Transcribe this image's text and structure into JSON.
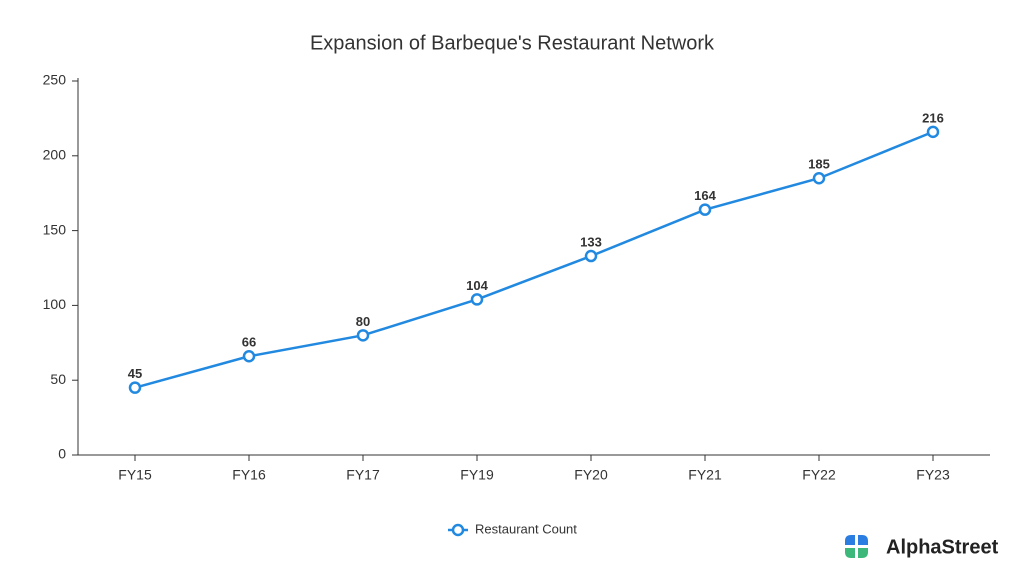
{
  "chart_data": {
    "type": "line",
    "title": "Expansion of Barbeque's Restaurant Network",
    "categories": [
      "FY15",
      "FY16",
      "FY17",
      "FY19",
      "FY20",
      "FY21",
      "FY22",
      "FY23"
    ],
    "series": [
      {
        "name": "Restaurant Count",
        "color": "#2289e0",
        "values": [
          45,
          66,
          80,
          104,
          133,
          164,
          185,
          216
        ]
      }
    ],
    "ylim": [
      0,
      250
    ],
    "yticks": [
      0,
      50,
      100,
      150,
      200,
      250
    ],
    "grid": false,
    "legend": "bottom"
  },
  "watermark": {
    "text": "AlphaStreet"
  }
}
